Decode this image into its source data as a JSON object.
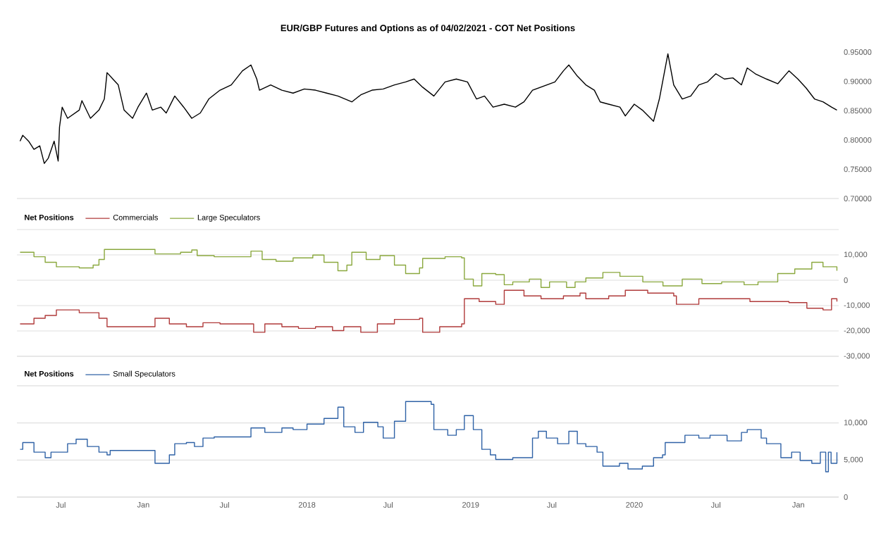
{
  "chart_data": [
    {
      "type": "line",
      "title": "EUR/GBP Futures and Options as of 04/02/2021 - COT Net Positions",
      "xlim": [
        "2016-03-25",
        "2021-04-01"
      ],
      "ylim": [
        0.7,
        0.95
      ],
      "yticks": [
        {
          "value": 0.7,
          "label": "0.70000"
        },
        {
          "value": 0.75,
          "label": "0.75000"
        },
        {
          "value": 0.8,
          "label": "0.80000"
        },
        {
          "value": 0.85,
          "label": "0.85000"
        },
        {
          "value": 0.9,
          "label": "0.90000"
        },
        {
          "value": 0.95,
          "label": "0.95000"
        }
      ],
      "tick_labels": "y",
      "series": [
        {
          "color": "#000000",
          "x": [
            "2016-04-01",
            "2016-04-07",
            "2016-04-20",
            "2016-05-02",
            "2016-05-15",
            "2016-05-25",
            "2016-06-03",
            "2016-06-16",
            "2016-06-25",
            "2016-06-28",
            "2016-07-04",
            "2016-07-16",
            "2016-08-11",
            "2016-08-17",
            "2016-09-05",
            "2016-09-24",
            "2016-10-06",
            "2016-10-12",
            "2016-10-25",
            "2016-11-06",
            "2016-11-19",
            "2016-12-08",
            "2016-12-20",
            "2017-01-08",
            "2017-01-21",
            "2017-02-09",
            "2017-02-21",
            "2017-03-12",
            "2017-04-01",
            "2017-04-19",
            "2017-05-08",
            "2017-05-27",
            "2017-06-21",
            "2017-07-16",
            "2017-08-10",
            "2017-08-29",
            "2017-09-11",
            "2017-09-17",
            "2017-10-12",
            "2017-11-06",
            "2017-12-01",
            "2017-12-26",
            "2018-01-20",
            "2018-02-14",
            "2018-03-11",
            "2018-04-11",
            "2018-05-01",
            "2018-05-26",
            "2018-06-20",
            "2018-07-15",
            "2018-08-09",
            "2018-08-28",
            "2018-09-16",
            "2018-10-11",
            "2018-11-05",
            "2018-11-30",
            "2018-12-25",
            "2019-01-14",
            "2019-02-01",
            "2019-02-20",
            "2019-03-17",
            "2019-04-11",
            "2019-04-30",
            "2019-05-19",
            "2019-06-13",
            "2019-07-08",
            "2019-07-27",
            "2019-08-08",
            "2019-08-27",
            "2019-09-15",
            "2019-10-04",
            "2019-10-17",
            "2019-11-05",
            "2019-11-30",
            "2019-12-12",
            "2020-01-01",
            "2020-01-19",
            "2020-02-13",
            "2020-02-26",
            "2020-03-16",
            "2020-03-29",
            "2020-04-17",
            "2020-05-06",
            "2020-05-24",
            "2020-06-12",
            "2020-07-01",
            "2020-07-20",
            "2020-08-08",
            "2020-08-27",
            "2020-09-09",
            "2020-09-27",
            "2020-10-22",
            "2020-11-16",
            "2020-12-11",
            "2020-12-31",
            "2021-01-18",
            "2021-02-06",
            "2021-02-25",
            "2021-03-16",
            "2021-03-28"
          ],
          "values": [
            0.798,
            0.808,
            0.798,
            0.784,
            0.79,
            0.76,
            0.769,
            0.798,
            0.764,
            0.822,
            0.856,
            0.837,
            0.851,
            0.867,
            0.837,
            0.851,
            0.87,
            0.915,
            0.904,
            0.894,
            0.851,
            0.837,
            0.856,
            0.88,
            0.851,
            0.856,
            0.846,
            0.875,
            0.856,
            0.837,
            0.846,
            0.87,
            0.885,
            0.894,
            0.918,
            0.928,
            0.904,
            0.885,
            0.894,
            0.885,
            0.88,
            0.887,
            0.885,
            0.88,
            0.875,
            0.865,
            0.877,
            0.885,
            0.887,
            0.894,
            0.899,
            0.904,
            0.89,
            0.875,
            0.899,
            0.904,
            0.899,
            0.87,
            0.875,
            0.856,
            0.861,
            0.856,
            0.865,
            0.885,
            0.892,
            0.899,
            0.918,
            0.928,
            0.909,
            0.894,
            0.885,
            0.865,
            0.861,
            0.856,
            0.841,
            0.861,
            0.851,
            0.832,
            0.87,
            0.947,
            0.894,
            0.87,
            0.875,
            0.894,
            0.899,
            0.913,
            0.904,
            0.906,
            0.894,
            0.923,
            0.913,
            0.904,
            0.896,
            0.918,
            0.904,
            0.889,
            0.87,
            0.865,
            0.856,
            0.851
          ]
        }
      ]
    },
    {
      "type": "step",
      "legend_title": "Net Positions",
      "legend": "top left",
      "grid": "y",
      "xlim": [
        "2016-03-25",
        "2021-04-01"
      ],
      "ylim": [
        -30000,
        20000
      ],
      "yticks": [
        {
          "value": -30000,
          "label": "-30,000"
        },
        {
          "value": -20000,
          "label": "-20,000"
        },
        {
          "value": -10000,
          "label": "-10,000"
        },
        0,
        {
          "value": 10000,
          "label": "10,000"
        },
        {
          "value": 20000,
          "label": null
        }
      ],
      "tick_labels": "y",
      "series": [
        {
          "name": "Commercials",
          "color": "#b03a3a",
          "x": [
            "2016-04-01",
            "2016-05-02",
            "2016-05-27",
            "2016-06-21",
            "2016-08-11",
            "2016-09-17",
            "2016-09-24",
            "2016-10-12",
            "2017-01-21",
            "2017-01-27",
            "2017-02-28",
            "2017-04-07",
            "2017-05-14",
            "2017-06-21",
            "2017-09-04",
            "2017-09-29",
            "2017-11-06",
            "2017-12-13",
            "2018-01-20",
            "2018-02-27",
            "2018-03-24",
            "2018-05-01",
            "2018-06-07",
            "2018-07-15",
            "2018-09-09",
            "2018-09-16",
            "2018-10-24",
            "2018-12-12",
            "2018-12-18",
            "2019-01-20",
            "2019-02-26",
            "2019-03-17",
            "2019-04-30",
            "2019-06-07",
            "2019-07-27",
            "2019-09-02",
            "2019-09-15",
            "2019-11-05",
            "2019-12-12",
            "2020-01-31",
            "2020-03-29",
            "2020-04-04",
            "2020-05-24",
            "2020-07-14",
            "2020-09-15",
            "2020-12-11",
            "2021-01-20",
            "2021-02-25",
            "2021-03-16",
            "2021-03-28"
          ],
          "values": [
            -17220,
            -15010,
            -13910,
            -11700,
            -12810,
            -12810,
            -15010,
            -18330,
            -18330,
            -15010,
            -17220,
            -18330,
            -16780,
            -17220,
            -20530,
            -17220,
            -18330,
            -18990,
            -18330,
            -19870,
            -18330,
            -20530,
            -17220,
            -15460,
            -15010,
            -20530,
            -18330,
            -17220,
            -7290,
            -8390,
            -9490,
            -3970,
            -6180,
            -7290,
            -6180,
            -5080,
            -7290,
            -6180,
            -3970,
            -5080,
            -6180,
            -9490,
            -7290,
            -7290,
            -8390,
            -8830,
            -11040,
            -11700,
            -7290,
            -8390
          ]
        },
        {
          "name": "Large Speculators",
          "color": "#8aa83e",
          "x": [
            "2016-04-01",
            "2016-05-02",
            "2016-05-27",
            "2016-06-21",
            "2016-08-11",
            "2016-09-11",
            "2016-09-24",
            "2016-10-06",
            "2017-01-21",
            "2017-01-27",
            "2017-02-28",
            "2017-03-25",
            "2017-04-19",
            "2017-05-01",
            "2017-06-08",
            "2017-08-23",
            "2017-08-29",
            "2017-09-23",
            "2017-10-24",
            "2017-12-01",
            "2018-01-14",
            "2018-02-08",
            "2018-03-11",
            "2018-03-31",
            "2018-04-11",
            "2018-05-13",
            "2018-06-13",
            "2018-07-15",
            "2018-08-09",
            "2018-09-09",
            "2018-09-16",
            "2018-11-05",
            "2018-12-12",
            "2018-12-18",
            "2019-01-07",
            "2019-01-26",
            "2019-02-26",
            "2019-03-17",
            "2019-04-05",
            "2019-05-12",
            "2019-06-07",
            "2019-06-26",
            "2019-08-03",
            "2019-08-22",
            "2019-09-15",
            "2019-10-23",
            "2019-11-30",
            "2020-01-20",
            "2020-03-05",
            "2020-04-17",
            "2020-05-31",
            "2020-07-14",
            "2020-09-02",
            "2020-10-03",
            "2020-11-16",
            "2020-12-24",
            "2021-01-31",
            "2021-02-25",
            "2021-03-28"
          ],
          "values": [
            11040,
            9270,
            7070,
            5300,
            4860,
            5960,
            8170,
            12140,
            12140,
            10380,
            10380,
            11040,
            11920,
            9720,
            9270,
            9270,
            11480,
            8170,
            7500,
            8830,
            9940,
            7070,
            3750,
            5960,
            11040,
            8170,
            9720,
            5960,
            2650,
            4860,
            8610,
            9270,
            8830,
            440,
            -2210,
            2650,
            2210,
            -1770,
            -660,
            440,
            -2870,
            -660,
            -2870,
            -660,
            880,
            3090,
            1550,
            -660,
            -2210,
            440,
            -1320,
            -660,
            -1770,
            -660,
            2650,
            4420,
            7070,
            5300,
            3750
          ]
        }
      ]
    },
    {
      "type": "step",
      "legend_title": "Net Positions",
      "legend": "top left",
      "grid": "y",
      "xlim": [
        "2016-03-25",
        "2021-04-01"
      ],
      "xticks": [
        {
          "value": "2016-07-01",
          "label": "Jul"
        },
        {
          "value": "2017-01-01",
          "label": "Jan"
        },
        {
          "value": "2017-07-01",
          "label": "Jul"
        },
        {
          "value": "2018-01-01",
          "label": "2018"
        },
        {
          "value": "2018-07-01",
          "label": "Jul"
        },
        {
          "value": "2019-01-01",
          "label": "2019"
        },
        {
          "value": "2019-07-01",
          "label": "Jul"
        },
        {
          "value": "2020-01-01",
          "label": "2020"
        },
        {
          "value": "2020-07-01",
          "label": "Jul"
        },
        {
          "value": "2021-01-01",
          "label": "Jan"
        }
      ],
      "ylim": [
        0,
        15000
      ],
      "yticks": [
        0,
        {
          "value": 5000,
          "label": "5,000"
        },
        {
          "value": 10000,
          "label": "10,000"
        },
        {
          "value": 15000,
          "label": null
        }
      ],
      "series": [
        {
          "name": "Small Speculators",
          "color": "#2f62a6",
          "x": [
            "2016-04-01",
            "2016-04-07",
            "2016-05-02",
            "2016-05-27",
            "2016-06-09",
            "2016-07-04",
            "2016-07-16",
            "2016-08-04",
            "2016-08-29",
            "2016-09-24",
            "2016-10-12",
            "2016-10-19",
            "2017-01-21",
            "2017-01-27",
            "2017-02-28",
            "2017-03-12",
            "2017-04-07",
            "2017-04-25",
            "2017-05-14",
            "2017-06-08",
            "2017-08-10",
            "2017-08-29",
            "2017-09-29",
            "2017-11-06",
            "2017-12-01",
            "2018-01-01",
            "2018-02-08",
            "2018-03-11",
            "2018-03-24",
            "2018-04-18",
            "2018-05-07",
            "2018-06-08",
            "2018-06-20",
            "2018-07-15",
            "2018-08-09",
            "2018-10-05",
            "2018-10-11",
            "2018-11-11",
            "2018-11-30",
            "2018-12-18",
            "2019-01-07",
            "2019-01-26",
            "2019-02-14",
            "2019-02-26",
            "2019-04-05",
            "2019-05-06",
            "2019-05-19",
            "2019-06-01",
            "2019-06-19",
            "2019-07-14",
            "2019-08-08",
            "2019-08-27",
            "2019-09-15",
            "2019-10-10",
            "2019-10-23",
            "2019-11-29",
            "2019-12-18",
            "2020-01-19",
            "2020-02-13",
            "2020-03-04",
            "2020-03-10",
            "2020-04-10",
            "2020-04-23",
            "2020-05-24",
            "2020-06-18",
            "2020-07-26",
            "2020-08-27",
            "2020-09-09",
            "2020-10-10",
            "2020-10-22",
            "2020-11-23",
            "2020-12-17",
            "2021-01-05",
            "2021-01-31",
            "2021-02-19",
            "2021-03-03",
            "2021-03-09",
            "2021-03-15",
            "2021-03-28"
          ],
          "values": [
            6440,
            7350,
            6060,
            5310,
            6060,
            6060,
            7200,
            7810,
            6820,
            6060,
            5690,
            6290,
            6290,
            4550,
            5690,
            7200,
            7350,
            6820,
            7960,
            8110,
            8110,
            9320,
            8720,
            9320,
            9100,
            9850,
            10610,
            12130,
            9480,
            8720,
            10080,
            9480,
            7960,
            10230,
            12890,
            12510,
            9100,
            8340,
            9100,
            10990,
            9100,
            6440,
            5690,
            5080,
            5310,
            5310,
            7960,
            8870,
            7960,
            7200,
            8870,
            7200,
            6820,
            6060,
            4170,
            4550,
            3790,
            4170,
            5310,
            5690,
            7350,
            7350,
            8340,
            7960,
            8340,
            7580,
            8720,
            9100,
            7960,
            7200,
            5310,
            6060,
            4930,
            4550,
            6060,
            3410,
            6060,
            4550,
            6060
          ]
        }
      ]
    }
  ]
}
